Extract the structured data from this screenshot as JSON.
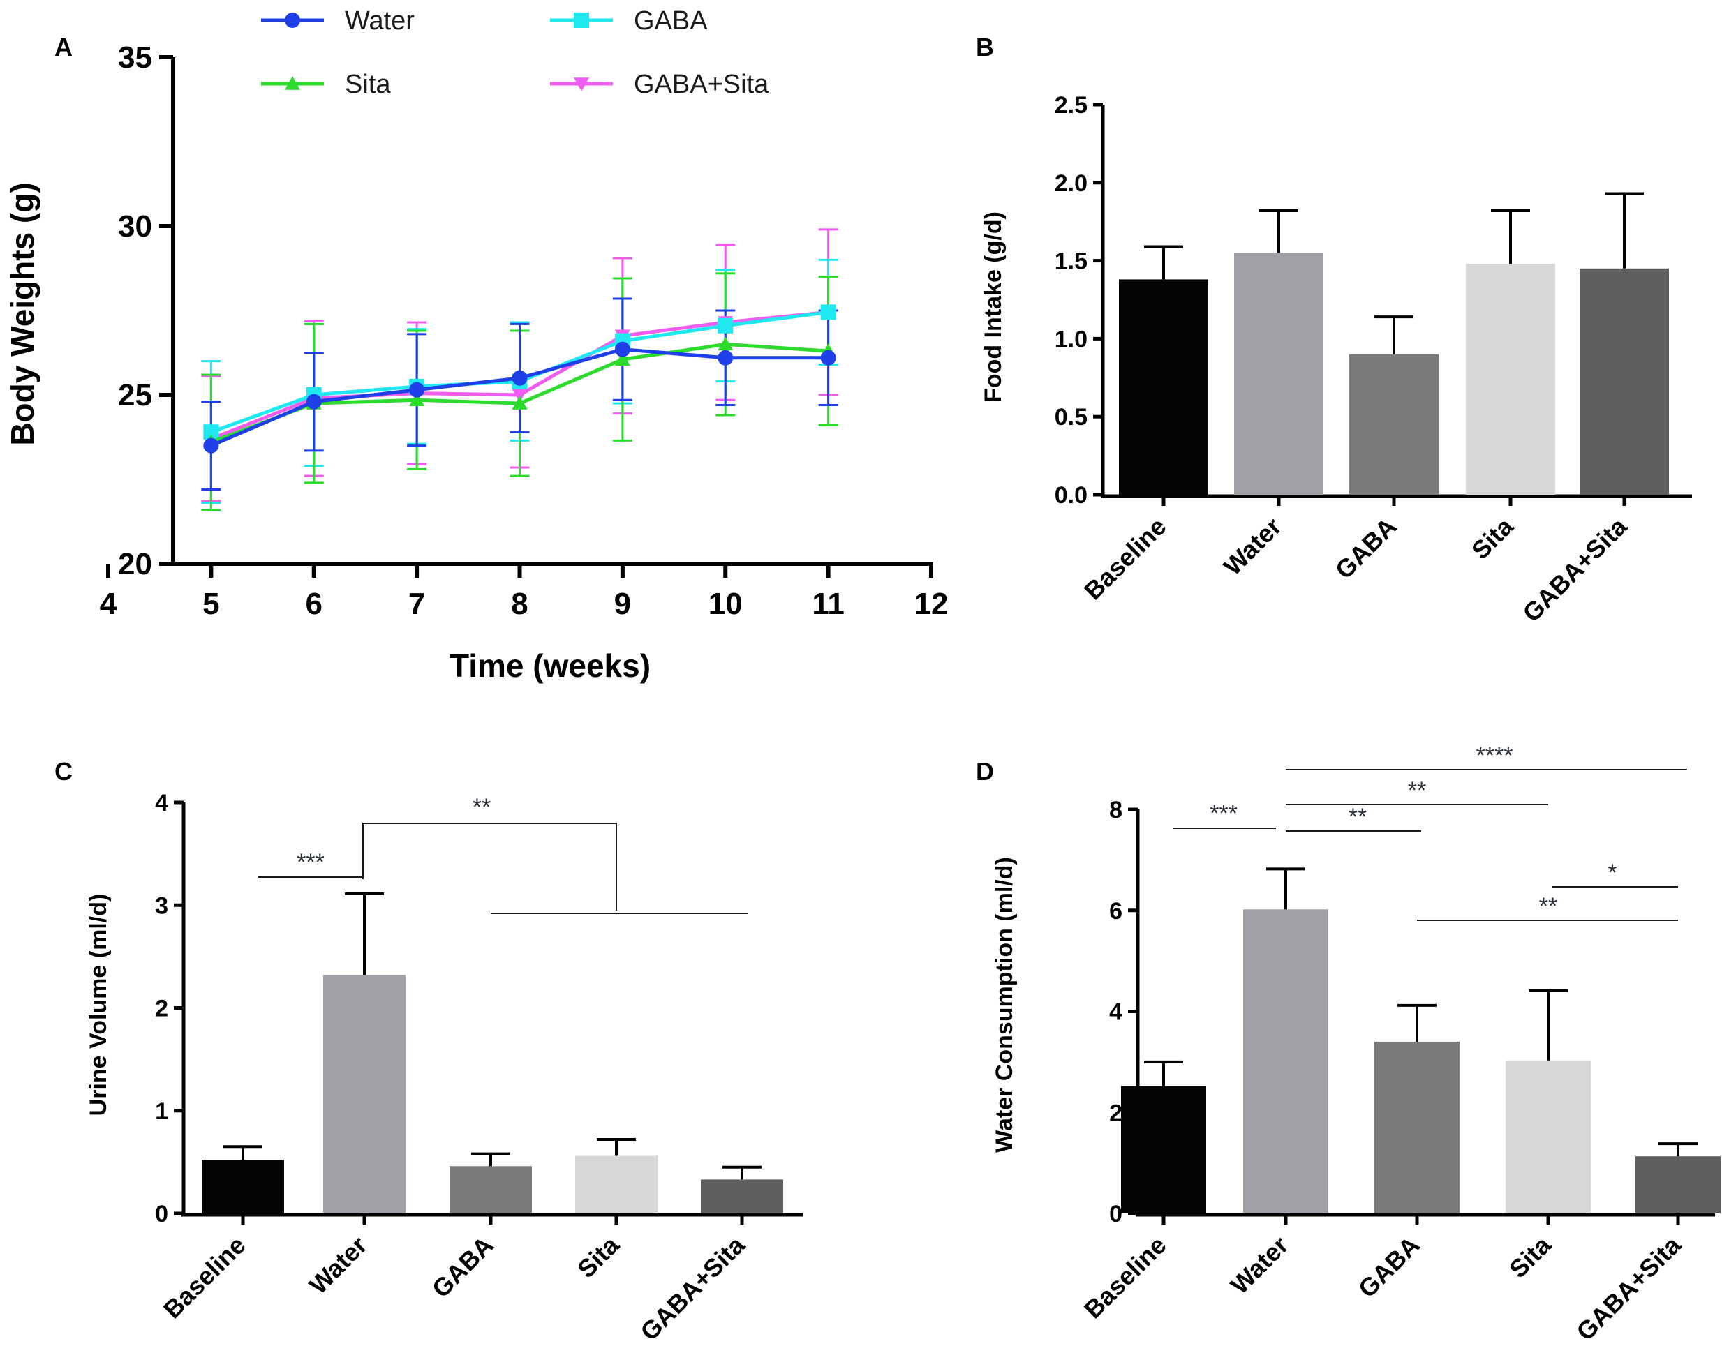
{
  "chart_data": [
    {
      "panel": "A",
      "type": "line",
      "xlabel": "Time (weeks)",
      "ylabel": "Body Weights (g)",
      "xlim": [
        4,
        12
      ],
      "ylim": [
        20,
        35
      ],
      "xticks": [
        "4",
        "5",
        "6",
        "7",
        "8",
        "9",
        "10",
        "11",
        "12"
      ],
      "yticks": [
        "20",
        "25",
        "30",
        "35"
      ],
      "x": [
        5,
        6,
        7,
        8,
        9,
        10,
        11
      ],
      "series": [
        {
          "name": "Water",
          "color": "#1f3fe8",
          "marker": "circle",
          "values": [
            23.5,
            24.8,
            25.15,
            25.5,
            26.35,
            26.1,
            26.1
          ],
          "errors": [
            1.3,
            1.45,
            1.65,
            1.6,
            1.5,
            1.4,
            1.4
          ]
        },
        {
          "name": "Sita",
          "color": "#2ddb2d",
          "marker": "triangle-up",
          "values": [
            23.6,
            24.75,
            24.85,
            24.75,
            26.05,
            26.5,
            26.3
          ],
          "errors": [
            2.0,
            2.35,
            2.05,
            2.15,
            2.4,
            2.1,
            2.2
          ]
        },
        {
          "name": "GABA",
          "color": "#1fe8f0",
          "marker": "square",
          "values": [
            23.9,
            25.0,
            25.25,
            25.4,
            26.6,
            27.05,
            27.45
          ],
          "errors": [
            2.1,
            2.1,
            1.7,
            1.75,
            1.85,
            1.65,
            1.55
          ]
        },
        {
          "name": "GABA+Sita",
          "color": "#f05cf0",
          "marker": "triangle-down",
          "values": [
            23.7,
            24.9,
            25.05,
            25.0,
            26.75,
            27.15,
            27.45
          ],
          "errors": [
            1.85,
            2.3,
            2.1,
            2.15,
            2.3,
            2.3,
            2.45
          ]
        }
      ]
    },
    {
      "panel": "B",
      "type": "bar",
      "ylabel": "Food Intake (g/d)",
      "ylim": [
        0,
        2.5
      ],
      "yticks": [
        "0.0",
        "0.5",
        "1.0",
        "1.5",
        "2.0",
        "2.5"
      ],
      "categories": [
        "Baseline",
        "Water",
        "GABA",
        "Sita",
        "GABA+Sita"
      ],
      "values": [
        1.38,
        1.55,
        0.9,
        1.48,
        1.45
      ],
      "errors": [
        0.21,
        0.27,
        0.24,
        0.34,
        0.48
      ],
      "colors": [
        "#050505",
        "#a0a0a6",
        "#7a7a7a",
        "#d8d8d8",
        "#5e5e5e"
      ]
    },
    {
      "panel": "C",
      "type": "bar",
      "ylabel": "Urine Volume (ml/d)",
      "ylim": [
        0,
        4
      ],
      "yticks": [
        "0",
        "1",
        "2",
        "3",
        "4"
      ],
      "categories": [
        "Baseline",
        "Water",
        "GABA",
        "Sita",
        "GABA+Sita"
      ],
      "values": [
        0.52,
        2.32,
        0.46,
        0.56,
        0.33
      ],
      "errors": [
        0.13,
        0.79,
        0.12,
        0.16,
        0.12
      ],
      "colors": [
        "#050505",
        "#a0a0a6",
        "#7a7a7a",
        "#d8d8d8",
        "#5e5e5e"
      ],
      "significance": [
        {
          "label": "***",
          "from": "Baseline",
          "to": "Water"
        },
        {
          "label": "**",
          "from": "Water",
          "to": "GABA – GABA+Sita"
        }
      ]
    },
    {
      "panel": "D",
      "type": "bar",
      "ylabel": "Water Consumption (ml/d)",
      "ylim": [
        0,
        8
      ],
      "yticks": [
        "0",
        "2",
        "4",
        "6",
        "8"
      ],
      "categories": [
        "Baseline",
        "Water",
        "GABA",
        "Sita",
        "GABA+Sita"
      ],
      "values": [
        2.52,
        6.02,
        3.4,
        3.03,
        1.13
      ],
      "errors": [
        0.48,
        0.8,
        0.72,
        1.38,
        0.25
      ],
      "colors": [
        "#050505",
        "#a0a0a6",
        "#7a7a7a",
        "#d8d8d8",
        "#5e5e5e"
      ],
      "significance": [
        {
          "label": "***",
          "from": "Baseline",
          "to": "Water"
        },
        {
          "label": "**",
          "from": "Water",
          "to": "GABA"
        },
        {
          "label": "**",
          "from": "Water",
          "to": "Sita"
        },
        {
          "label": "****",
          "from": "Water",
          "to": "GABA+Sita"
        },
        {
          "label": "*",
          "from": "Sita",
          "to": "GABA+Sita"
        },
        {
          "label": "**",
          "from": "GABA",
          "to": "GABA+Sita"
        }
      ]
    }
  ]
}
